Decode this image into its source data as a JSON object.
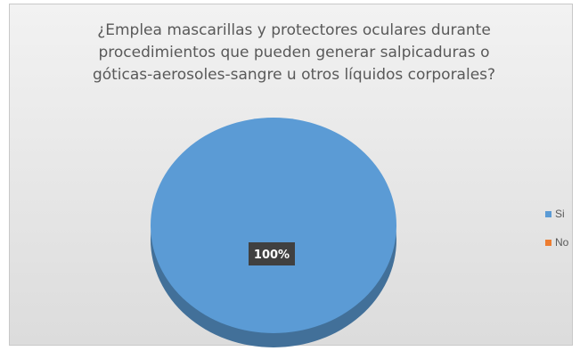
{
  "chart_data": {
    "type": "pie",
    "title": "¿Emplea mascarillas y protectores oculares durante procedimientos que pueden generar salpicaduras o góticas-aerosoles-sangre u otros líquidos corporales?",
    "title_lines": [
      "¿Emplea mascarillas y protectores oculares durante",
      "procedimientos que pueden generar salpicaduras o",
      "góticas-aerosoles-sangre u otros líquidos corporales?"
    ],
    "categories": [
      "Si",
      "No"
    ],
    "values": [
      100,
      0
    ],
    "data_labels": [
      "100%",
      ""
    ],
    "colors": [
      "#5b9bd5",
      "#ed7d31"
    ],
    "legend_position": "right",
    "style": "3d"
  }
}
